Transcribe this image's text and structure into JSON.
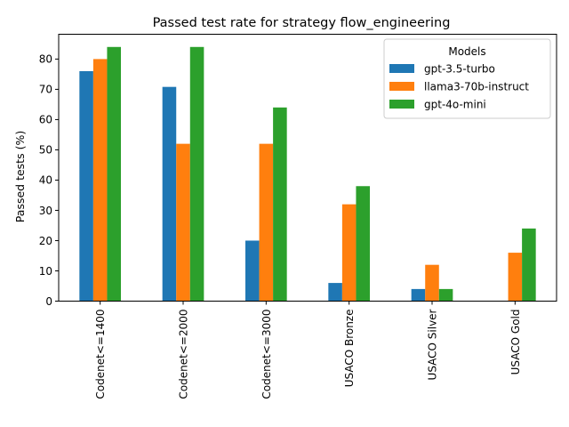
{
  "chart_data": {
    "type": "bar",
    "title": "Passed test rate for strategy flow_engineering",
    "xlabel": "",
    "ylabel": "Passed tests (%)",
    "ylim": [
      0,
      88.2
    ],
    "yticks": [
      0,
      10,
      20,
      30,
      40,
      50,
      60,
      70,
      80
    ],
    "categories": [
      "Codenet<=1400",
      "Codenet<=2000",
      "Codenet<=3000",
      "USACO Bronze",
      "USACO Silver",
      "USACO Gold"
    ],
    "series": [
      {
        "name": "gpt-3.5-turbo",
        "color": "#1f77b4",
        "values": [
          76,
          70.8,
          20,
          6,
          4,
          0
        ]
      },
      {
        "name": "llama3-70b-instruct",
        "color": "#ff7f0e",
        "values": [
          80,
          52,
          52,
          32,
          12,
          16
        ]
      },
      {
        "name": "gpt-4o-mini",
        "color": "#2ca02c",
        "values": [
          84,
          84,
          64,
          38,
          4,
          24
        ]
      }
    ],
    "legend": {
      "title": "Models",
      "placement": "top-right"
    },
    "grid": false
  }
}
